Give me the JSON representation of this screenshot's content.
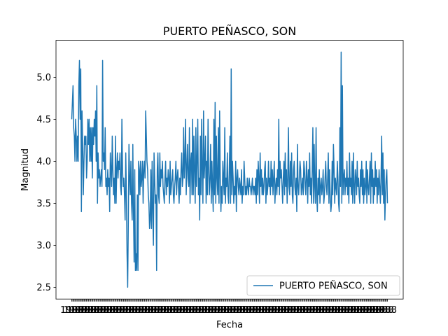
{
  "chart_data": {
    "type": "line",
    "title": "PUERTO PEÑASCO, SON",
    "xlabel": "Fecha",
    "ylabel": "Magnitud",
    "ylim": [
      2.36,
      5.44
    ],
    "yticks": [
      "2.5",
      "3.0",
      "3.5",
      "4.0",
      "4.5",
      "5.0"
    ],
    "x_tick_count": 300,
    "x_tick_overprint": "1988",
    "grid": false,
    "legend_position": "lower right",
    "color": "#1f77b4",
    "series": [
      {
        "name": "PUERTO PEÑASCO, SON",
        "values": [
          4.5,
          4.7,
          4.9,
          4.4,
          4.3,
          4.0,
          4.5,
          4.3,
          4.0,
          4.3,
          4.0,
          4.9,
          5.2,
          4.5,
          5.1,
          3.4,
          4.6,
          4.2,
          3.6,
          4.0,
          4.3,
          4.2,
          4.3,
          3.8,
          4.0,
          4.5,
          4.2,
          4.5,
          4.0,
          4.4,
          4.0,
          4.4,
          3.8,
          4.4,
          4.2,
          4.5,
          4.3,
          4.6,
          4.0,
          4.9,
          3.5,
          4.1,
          3.8,
          3.9,
          3.7,
          3.8,
          3.9,
          3.7,
          5.2,
          4.0,
          4.1,
          3.9,
          4.4,
          3.7,
          3.8,
          3.6,
          3.9,
          3.7,
          3.8,
          3.4,
          4.1,
          3.9,
          3.7,
          4.3,
          3.9,
          3.6,
          3.8,
          3.5,
          4.3,
          3.5,
          3.9,
          4.1,
          3.8,
          4.0,
          3.9,
          4.1,
          3.7,
          3.6,
          4.5,
          3.9,
          3.7,
          3.8,
          3.6,
          3.3,
          4.1,
          3.6,
          2.9,
          2.5,
          3.3,
          4.2,
          3.8,
          3.6,
          4.0,
          3.5,
          3.3,
          4.2,
          3.4,
          2.8,
          3.9,
          2.7,
          2.9,
          2.7,
          3.6,
          2.7,
          4.0,
          3.9,
          3.6,
          4.0,
          3.7,
          3.8,
          4.0,
          3.5,
          3.9,
          4.0,
          3.8,
          4.6,
          4.3,
          4.0,
          3.9,
          3.6,
          3.5,
          3.2,
          3.3,
          3.9,
          3.2,
          4.0,
          3.4,
          3.0,
          4.1,
          3.8,
          3.5,
          3.6,
          2.7,
          3.9,
          4.1,
          3.6,
          3.5,
          4.1,
          3.7,
          3.9,
          3.8,
          4.0,
          3.7,
          3.6,
          3.5,
          3.8,
          4.0,
          3.6,
          3.8,
          3.7,
          3.9,
          3.8,
          3.5,
          4.0,
          3.6,
          3.7,
          3.8,
          3.9,
          3.6,
          3.5,
          3.7,
          3.8,
          4.0,
          3.6,
          3.8,
          3.9,
          3.7,
          3.5,
          3.8,
          3.6,
          3.9,
          4.1,
          3.7,
          3.8,
          4.4,
          3.8,
          4.0,
          4.5,
          3.6,
          3.9,
          4.2,
          3.8,
          3.7,
          4.4,
          3.5,
          4.0,
          4.1,
          3.6,
          4.5,
          3.6,
          4.3,
          3.9,
          3.5,
          4.4,
          3.7,
          4.0,
          4.5,
          3.6,
          3.8,
          3.3,
          4.3,
          3.6,
          4.5,
          3.9,
          3.5,
          4.6,
          3.8,
          4.0,
          4.3,
          3.5,
          4.0,
          3.6,
          4.5,
          3.9,
          3.6,
          3.8,
          4.2,
          3.5,
          4.0,
          3.7,
          3.4,
          4.5,
          3.6,
          4.7,
          3.5,
          4.3,
          3.8,
          3.6,
          4.4,
          3.5,
          4.6,
          3.8,
          3.4,
          3.7,
          3.5,
          4.0,
          3.8,
          3.6,
          4.4,
          3.5,
          3.8,
          3.7,
          4.1,
          3.6,
          3.5,
          3.9,
          4.3,
          3.5,
          5.1,
          3.6,
          4.0,
          3.8,
          3.5,
          3.7,
          3.6,
          4.0,
          3.4,
          3.8,
          3.9,
          3.7,
          3.6,
          3.8,
          3.7,
          3.6,
          3.9,
          3.5,
          3.7,
          3.6,
          4.0,
          3.8,
          3.6,
          3.7,
          3.6,
          3.8,
          3.7,
          3.6,
          3.8,
          3.7,
          3.7,
          3.6,
          3.7,
          3.8,
          3.6,
          3.7,
          3.7,
          3.6,
          3.8,
          3.5,
          3.9,
          3.6,
          4.0,
          3.8,
          3.5,
          4.1,
          3.7,
          3.9,
          3.6,
          3.8,
          3.6,
          3.7,
          3.9,
          4.0,
          3.5,
          3.8,
          3.6,
          3.7,
          4.0,
          3.7,
          3.8,
          3.6,
          4.0,
          3.7,
          3.9,
          3.6,
          3.8,
          4.0,
          3.5,
          3.7,
          3.8,
          3.6,
          3.9,
          3.7,
          4.5,
          3.6,
          4.0,
          3.8,
          3.9,
          3.7,
          3.5,
          3.8,
          4.0,
          3.6,
          4.1,
          3.7,
          3.9,
          3.5,
          3.8,
          4.4,
          3.7,
          3.6,
          4.0,
          3.7,
          4.1,
          3.6,
          3.5,
          3.9,
          4.0,
          3.7,
          3.6,
          3.8,
          3.4,
          4.2,
          3.7,
          3.6,
          3.8,
          4.0,
          3.9,
          3.6,
          3.7,
          3.8,
          3.6,
          4.0,
          3.9,
          3.7,
          3.6,
          4.0,
          3.8,
          3.5,
          3.9,
          3.7,
          4.1,
          3.6,
          3.8,
          3.5,
          3.9,
          4.4,
          3.5,
          4.2,
          3.7,
          3.5,
          4.4,
          3.6,
          3.4,
          3.8,
          3.6,
          3.9,
          3.5,
          3.7,
          3.8,
          3.6,
          3.7,
          3.9,
          3.5,
          3.6,
          3.8,
          4.0,
          3.7,
          3.6,
          3.8,
          4.1,
          3.5,
          3.9,
          3.6,
          3.4,
          3.5,
          4.0,
          3.6,
          4.2,
          3.9,
          3.5,
          3.8,
          3.7,
          3.6,
          4.0,
          3.8,
          3.5,
          3.4,
          4.4,
          3.7,
          5.3,
          3.5,
          4.9,
          3.6,
          3.8,
          3.9,
          3.6,
          3.8,
          3.7,
          4.0,
          3.6,
          3.8,
          3.5,
          4.1,
          3.7,
          3.8,
          3.6,
          4.0,
          3.5,
          4.1,
          3.7,
          3.5,
          3.9,
          3.8,
          3.6,
          4.0,
          3.7,
          3.8,
          3.6,
          3.5,
          3.9,
          3.7,
          4.0,
          3.6,
          3.9,
          3.5,
          3.8,
          3.6,
          3.7,
          4.0,
          3.5,
          3.9,
          3.7,
          3.6,
          3.8,
          4.0,
          3.5,
          4.1,
          3.7,
          3.9,
          3.5,
          3.8,
          3.6,
          4.0,
          3.7,
          3.9,
          3.5,
          3.8,
          3.6,
          3.9,
          3.7,
          3.5,
          3.8,
          4.3,
          3.6,
          4.1,
          3.5,
          3.9,
          3.3,
          3.6,
          3.8,
          3.9,
          3.5
        ]
      }
    ]
  }
}
